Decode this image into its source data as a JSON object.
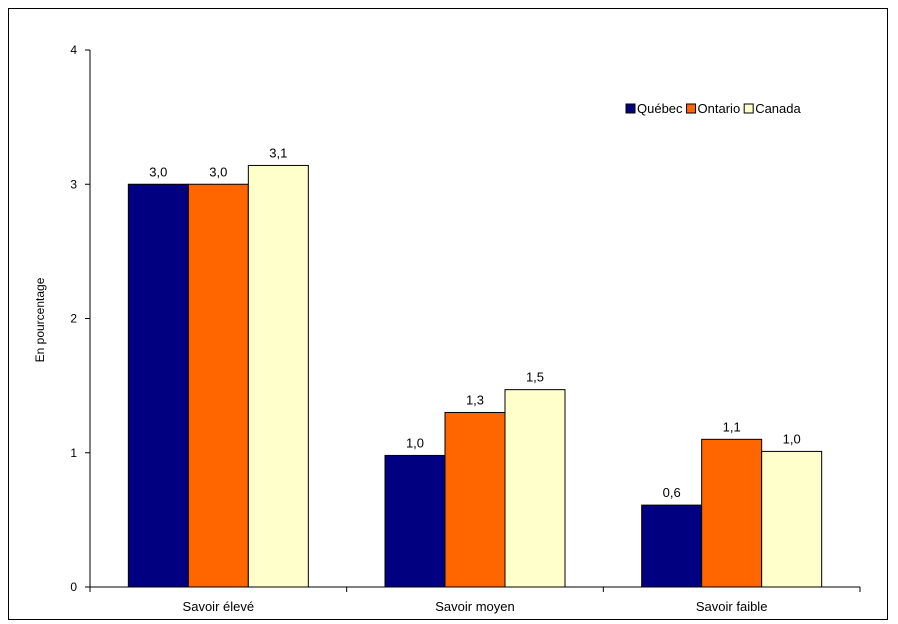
{
  "chart_data": {
    "type": "bar",
    "title": "",
    "xlabel": "",
    "ylabel": "En pourcentage",
    "ylim": [
      0,
      4
    ],
    "yticks": [
      "0",
      "1",
      "2",
      "3",
      "4"
    ],
    "categories": [
      "Savoir élevé",
      "Savoir moyen",
      "Savoir faible"
    ],
    "series": [
      {
        "name": "Québec",
        "color": "#000080",
        "values": [
          3.0,
          0.98,
          0.61
        ],
        "labels": [
          "3,0",
          "1,0",
          "0,6"
        ]
      },
      {
        "name": "Ontario",
        "color": "#FF6600",
        "values": [
          3.0,
          1.3,
          1.1
        ],
        "labels": [
          "3,0",
          "1,3",
          "1,1"
        ]
      },
      {
        "name": "Canada",
        "color": "#FFFFCC",
        "values": [
          3.14,
          1.47,
          1.01
        ],
        "labels": [
          "3,1",
          "1,5",
          "1,0"
        ]
      }
    ],
    "legend_position": "top-right",
    "grid": false
  }
}
